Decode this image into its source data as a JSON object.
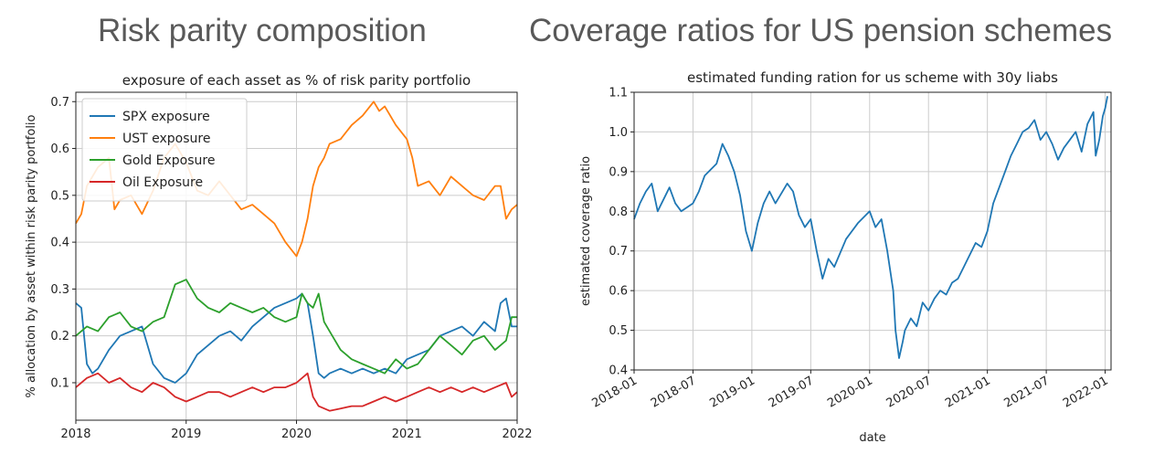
{
  "headings": {
    "left": "Risk parity composition",
    "right": "Coverage ratios for US pension schemes"
  },
  "colors": {
    "blue": "#1f77b4",
    "orange": "#ff7f0e",
    "green": "#2ca02c",
    "red": "#d62728",
    "grid": "#cccccc"
  },
  "chart_data": [
    {
      "type": "line",
      "title": "exposure of each asset as % of risk parity portfolio",
      "xlabel": "",
      "ylabel": "% allocation by asset within risk parity portfolio",
      "xlim": [
        2018,
        2022
      ],
      "ylim": [
        0.02,
        0.72
      ],
      "xticks": [
        2018,
        2019,
        2020,
        2021,
        2022
      ],
      "xtick_labels": [
        "2018",
        "2019",
        "2020",
        "2021",
        "2022"
      ],
      "yticks": [
        0.1,
        0.2,
        0.3,
        0.4,
        0.5,
        0.6,
        0.7
      ],
      "ytick_labels": [
        "0.1",
        "0.2",
        "0.3",
        "0.4",
        "0.5",
        "0.6",
        "0.7"
      ],
      "grid": true,
      "legend_position": "top-left",
      "series": [
        {
          "name": "SPX exposure",
          "color": "#1f77b4",
          "x": [
            2018.0,
            2018.05,
            2018.1,
            2018.15,
            2018.2,
            2018.3,
            2018.4,
            2018.5,
            2018.6,
            2018.7,
            2018.8,
            2018.9,
            2019.0,
            2019.1,
            2019.2,
            2019.3,
            2019.4,
            2019.5,
            2019.6,
            2019.7,
            2019.8,
            2019.9,
            2020.0,
            2020.05,
            2020.1,
            2020.15,
            2020.2,
            2020.25,
            2020.3,
            2020.4,
            2020.5,
            2020.6,
            2020.7,
            2020.8,
            2020.9,
            2021.0,
            2021.1,
            2021.2,
            2021.3,
            2021.4,
            2021.5,
            2021.6,
            2021.7,
            2021.8,
            2021.85,
            2021.9,
            2021.95,
            2022.0
          ],
          "y": [
            0.27,
            0.26,
            0.14,
            0.12,
            0.13,
            0.17,
            0.2,
            0.21,
            0.22,
            0.14,
            0.11,
            0.1,
            0.12,
            0.16,
            0.18,
            0.2,
            0.21,
            0.19,
            0.22,
            0.24,
            0.26,
            0.27,
            0.28,
            0.29,
            0.27,
            0.2,
            0.12,
            0.11,
            0.12,
            0.13,
            0.12,
            0.13,
            0.12,
            0.13,
            0.12,
            0.15,
            0.16,
            0.17,
            0.2,
            0.21,
            0.22,
            0.2,
            0.23,
            0.21,
            0.27,
            0.28,
            0.22,
            0.22
          ]
        },
        {
          "name": "UST exposure",
          "color": "#ff7f0e",
          "x": [
            2018.0,
            2018.05,
            2018.1,
            2018.2,
            2018.3,
            2018.35,
            2018.4,
            2018.5,
            2018.6,
            2018.7,
            2018.8,
            2018.9,
            2019.0,
            2019.1,
            2019.2,
            2019.3,
            2019.4,
            2019.5,
            2019.6,
            2019.7,
            2019.8,
            2019.9,
            2020.0,
            2020.05,
            2020.1,
            2020.15,
            2020.2,
            2020.25,
            2020.3,
            2020.4,
            2020.5,
            2020.6,
            2020.7,
            2020.75,
            2020.8,
            2020.9,
            2021.0,
            2021.05,
            2021.1,
            2021.2,
            2021.3,
            2021.4,
            2021.5,
            2021.6,
            2021.7,
            2021.8,
            2021.85,
            2021.9,
            2021.95,
            2022.0
          ],
          "y": [
            0.44,
            0.46,
            0.52,
            0.56,
            0.58,
            0.47,
            0.49,
            0.5,
            0.46,
            0.51,
            0.58,
            0.61,
            0.57,
            0.51,
            0.5,
            0.53,
            0.5,
            0.47,
            0.48,
            0.46,
            0.44,
            0.4,
            0.37,
            0.4,
            0.45,
            0.52,
            0.56,
            0.58,
            0.61,
            0.62,
            0.65,
            0.67,
            0.7,
            0.68,
            0.69,
            0.65,
            0.62,
            0.58,
            0.52,
            0.53,
            0.5,
            0.54,
            0.52,
            0.5,
            0.49,
            0.52,
            0.52,
            0.45,
            0.47,
            0.48
          ]
        },
        {
          "name": "Gold Exposure",
          "color": "#2ca02c",
          "x": [
            2018.0,
            2018.05,
            2018.1,
            2018.2,
            2018.3,
            2018.4,
            2018.5,
            2018.6,
            2018.7,
            2018.8,
            2018.9,
            2019.0,
            2019.1,
            2019.2,
            2019.3,
            2019.4,
            2019.5,
            2019.6,
            2019.7,
            2019.8,
            2019.9,
            2020.0,
            2020.05,
            2020.1,
            2020.15,
            2020.2,
            2020.25,
            2020.3,
            2020.4,
            2020.5,
            2020.6,
            2020.7,
            2020.8,
            2020.9,
            2021.0,
            2021.1,
            2021.2,
            2021.3,
            2021.4,
            2021.5,
            2021.6,
            2021.7,
            2021.8,
            2021.9,
            2021.95,
            2022.0
          ],
          "y": [
            0.2,
            0.21,
            0.22,
            0.21,
            0.24,
            0.25,
            0.22,
            0.21,
            0.23,
            0.24,
            0.31,
            0.32,
            0.28,
            0.26,
            0.25,
            0.27,
            0.26,
            0.25,
            0.26,
            0.24,
            0.23,
            0.24,
            0.29,
            0.27,
            0.26,
            0.29,
            0.23,
            0.21,
            0.17,
            0.15,
            0.14,
            0.13,
            0.12,
            0.15,
            0.13,
            0.14,
            0.17,
            0.2,
            0.18,
            0.16,
            0.19,
            0.2,
            0.17,
            0.19,
            0.24,
            0.24
          ]
        },
        {
          "name": "Oil Exposure",
          "color": "#d62728",
          "x": [
            2018.0,
            2018.1,
            2018.2,
            2018.3,
            2018.4,
            2018.5,
            2018.6,
            2018.7,
            2018.8,
            2018.9,
            2019.0,
            2019.1,
            2019.2,
            2019.3,
            2019.4,
            2019.5,
            2019.6,
            2019.7,
            2019.8,
            2019.9,
            2020.0,
            2020.1,
            2020.15,
            2020.2,
            2020.3,
            2020.4,
            2020.5,
            2020.6,
            2020.7,
            2020.8,
            2020.9,
            2021.0,
            2021.1,
            2021.2,
            2021.3,
            2021.4,
            2021.5,
            2021.6,
            2021.7,
            2021.8,
            2021.9,
            2021.95,
            2022.0
          ],
          "y": [
            0.09,
            0.11,
            0.12,
            0.1,
            0.11,
            0.09,
            0.08,
            0.1,
            0.09,
            0.07,
            0.06,
            0.07,
            0.08,
            0.08,
            0.07,
            0.08,
            0.09,
            0.08,
            0.09,
            0.09,
            0.1,
            0.12,
            0.07,
            0.05,
            0.04,
            0.045,
            0.05,
            0.05,
            0.06,
            0.07,
            0.06,
            0.07,
            0.08,
            0.09,
            0.08,
            0.09,
            0.08,
            0.09,
            0.08,
            0.09,
            0.1,
            0.07,
            0.08
          ]
        }
      ]
    },
    {
      "type": "line",
      "title": "estimated funding ration for us scheme with 30y liabs",
      "xlabel": "date",
      "ylabel": "estimated coverage ratio",
      "xlim": [
        2018.0,
        2022.05
      ],
      "ylim": [
        0.4,
        1.1
      ],
      "xticks": [
        2018.0,
        2018.5,
        2019.0,
        2019.5,
        2020.0,
        2020.5,
        2021.0,
        2021.5,
        2022.0
      ],
      "xtick_labels": [
        "2018-01",
        "2018-07",
        "2019-01",
        "2019-07",
        "2020-01",
        "2020-07",
        "2021-01",
        "2021-07",
        "2022-01"
      ],
      "yticks": [
        0.4,
        0.5,
        0.6,
        0.7,
        0.8,
        0.9,
        1.0,
        1.1
      ],
      "ytick_labels": [
        "0.4",
        "0.5",
        "0.6",
        "0.7",
        "0.8",
        "0.9",
        "1.0",
        "1.1"
      ],
      "grid": true,
      "series": [
        {
          "color": "#1f77b4",
          "x": [
            2018.0,
            2018.05,
            2018.1,
            2018.15,
            2018.2,
            2018.3,
            2018.35,
            2018.4,
            2018.5,
            2018.55,
            2018.6,
            2018.7,
            2018.75,
            2018.8,
            2018.85,
            2018.9,
            2018.95,
            2019.0,
            2019.05,
            2019.1,
            2019.15,
            2019.2,
            2019.3,
            2019.35,
            2019.4,
            2019.45,
            2019.5,
            2019.55,
            2019.6,
            2019.65,
            2019.7,
            2019.8,
            2019.9,
            2020.0,
            2020.05,
            2020.1,
            2020.15,
            2020.2,
            2020.22,
            2020.25,
            2020.28,
            2020.3,
            2020.35,
            2020.4,
            2020.45,
            2020.5,
            2020.55,
            2020.6,
            2020.65,
            2020.7,
            2020.75,
            2020.8,
            2020.85,
            2020.9,
            2020.95,
            2021.0,
            2021.05,
            2021.1,
            2021.15,
            2021.2,
            2021.25,
            2021.3,
            2021.35,
            2021.4,
            2021.45,
            2021.5,
            2021.55,
            2021.6,
            2021.65,
            2021.7,
            2021.75,
            2021.8,
            2021.85,
            2021.9,
            2021.92,
            2021.95,
            2021.98,
            2022.0,
            2022.02
          ],
          "y": [
            0.78,
            0.82,
            0.85,
            0.87,
            0.8,
            0.86,
            0.82,
            0.8,
            0.82,
            0.85,
            0.89,
            0.92,
            0.97,
            0.94,
            0.9,
            0.84,
            0.75,
            0.7,
            0.77,
            0.82,
            0.85,
            0.82,
            0.87,
            0.85,
            0.79,
            0.76,
            0.78,
            0.7,
            0.63,
            0.68,
            0.66,
            0.73,
            0.77,
            0.8,
            0.76,
            0.78,
            0.7,
            0.6,
            0.5,
            0.43,
            0.47,
            0.5,
            0.53,
            0.51,
            0.57,
            0.55,
            0.58,
            0.6,
            0.59,
            0.62,
            0.63,
            0.66,
            0.69,
            0.72,
            0.71,
            0.75,
            0.82,
            0.86,
            0.9,
            0.94,
            0.97,
            1.0,
            1.01,
            1.03,
            0.98,
            1.0,
            0.97,
            0.93,
            0.96,
            0.98,
            1.0,
            0.95,
            1.02,
            1.05,
            0.94,
            0.98,
            1.04,
            1.06,
            1.09
          ]
        }
      ]
    }
  ]
}
